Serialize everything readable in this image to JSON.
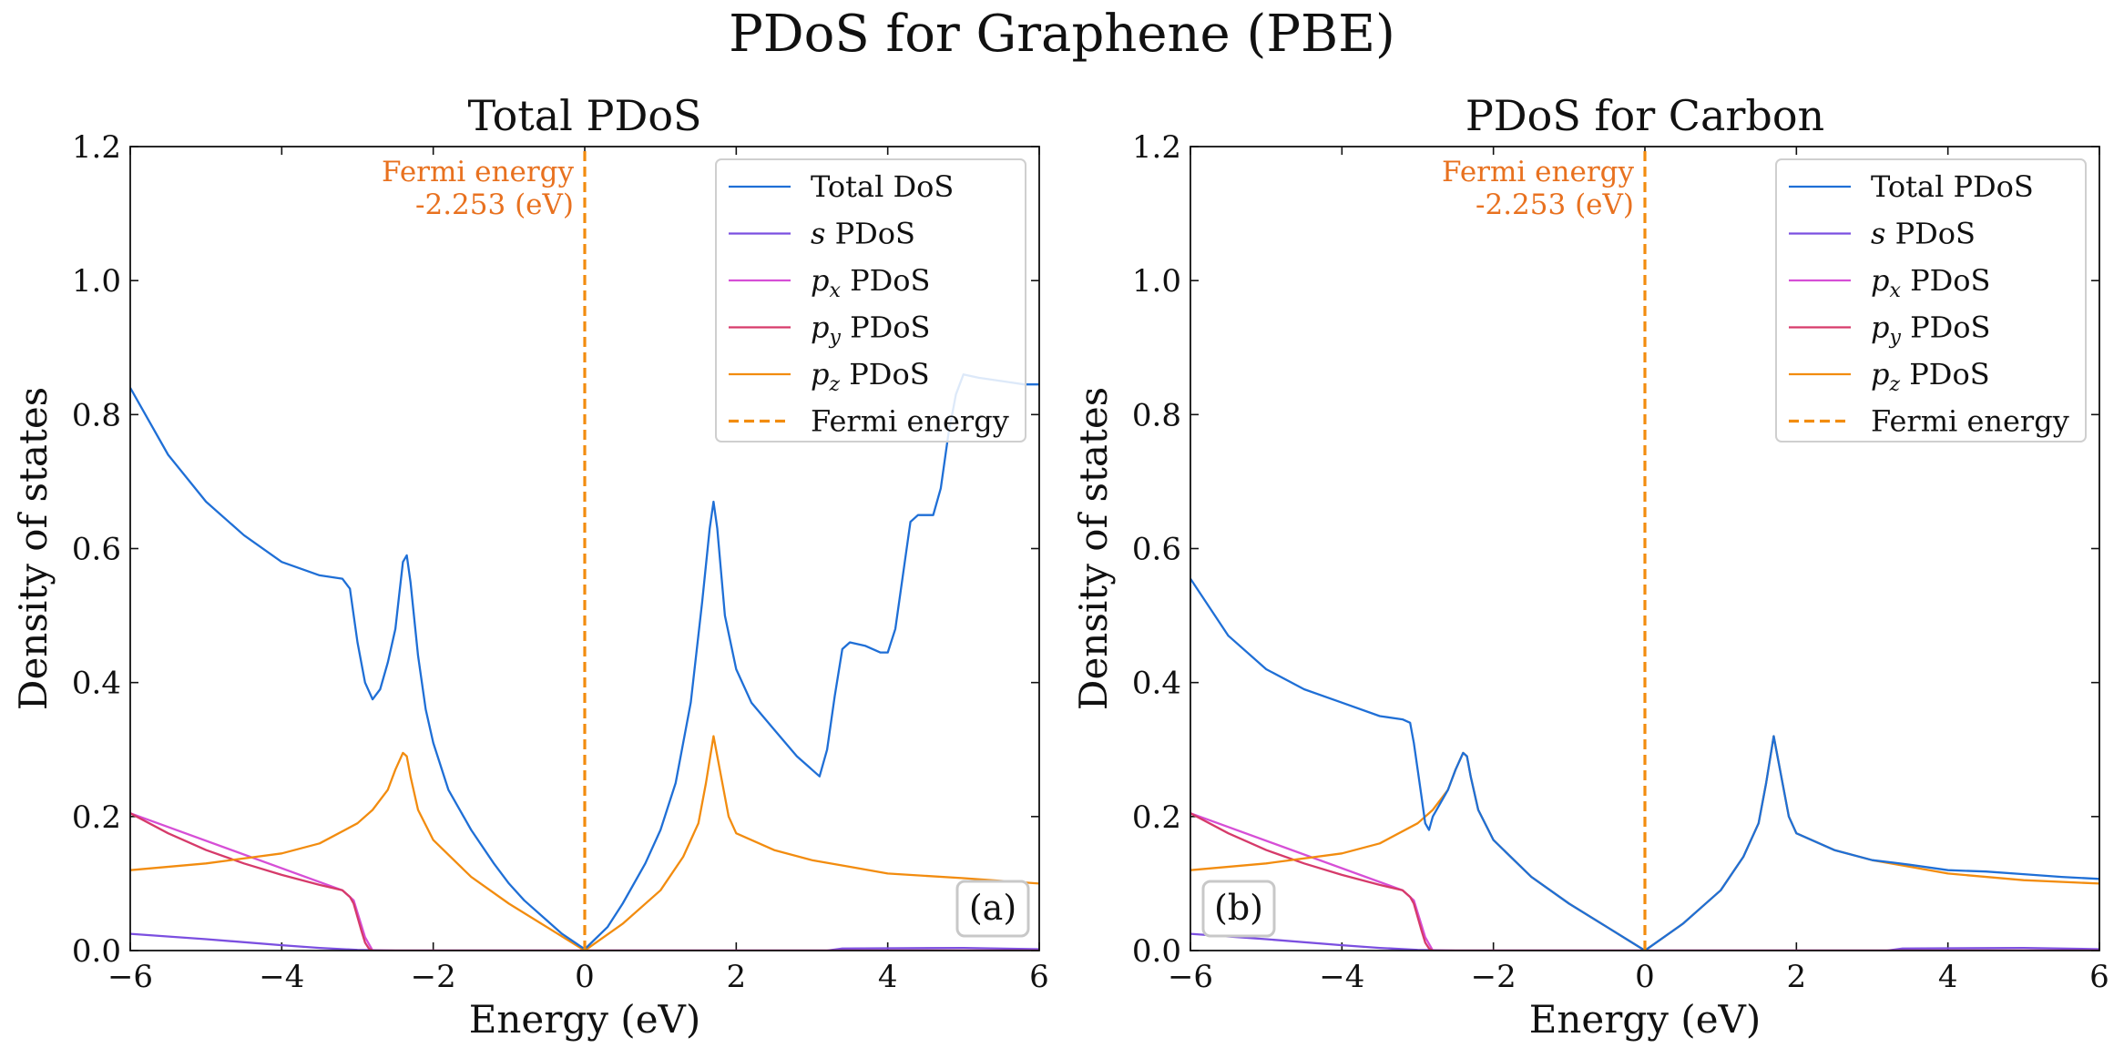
{
  "figure": {
    "suptitle": "PDoS for Graphene (PBE)"
  },
  "colors": {
    "total": "#1f6fd6",
    "s": "#7b4fe0",
    "px": "#d64fd6",
    "py": "#d63a6a",
    "pz": "#f28c0f",
    "fermi": "#f28c0f",
    "fermi_text": "#e8711f"
  },
  "chart_data": [
    {
      "type": "line",
      "title": "Total PDoS",
      "xlabel": "Energy (eV)",
      "ylabel": "Density of states",
      "xlim": [
        -6,
        6
      ],
      "ylim": [
        0,
        1.2
      ],
      "xticks": [
        -6,
        -4,
        -2,
        0,
        2,
        4,
        6
      ],
      "xtick_labels": [
        "−6",
        "−4",
        "−2",
        "0",
        "2",
        "4",
        "6"
      ],
      "yticks": [
        0,
        0.2,
        0.4,
        0.6,
        0.8,
        1.0,
        1.2
      ],
      "ytick_labels": [
        "0.0",
        "0.2",
        "0.4",
        "0.6",
        "0.8",
        "1.0",
        "1.2"
      ],
      "grid": false,
      "legend_position": "top-right",
      "panel_label": "(a)",
      "fermi_energy": 0,
      "fermi_annotation": [
        "Fermi energy",
        "-2.253 (eV)"
      ],
      "series": [
        {
          "name": "Total DoS",
          "color_key": "total",
          "style": "solid",
          "x": [
            -6,
            -5.5,
            -5,
            -4.5,
            -4,
            -3.5,
            -3.2,
            -3.1,
            -3.0,
            -2.9,
            -2.8,
            -2.7,
            -2.6,
            -2.5,
            -2.45,
            -2.4,
            -2.35,
            -2.3,
            -2.2,
            -2.1,
            -2.0,
            -1.8,
            -1.5,
            -1.2,
            -1.0,
            -0.8,
            -0.5,
            -0.3,
            0,
            0.3,
            0.5,
            0.8,
            1.0,
            1.2,
            1.4,
            1.55,
            1.65,
            1.7,
            1.75,
            1.85,
            2.0,
            2.2,
            2.5,
            2.8,
            3.0,
            3.1,
            3.2,
            3.3,
            3.4,
            3.5,
            3.7,
            3.9,
            4.0,
            4.1,
            4.2,
            4.3,
            4.4,
            4.6,
            4.7,
            4.8,
            4.9,
            5.0,
            5.2,
            5.5,
            5.8,
            6.0
          ],
          "y": [
            0.84,
            0.74,
            0.67,
            0.62,
            0.58,
            0.56,
            0.555,
            0.54,
            0.46,
            0.4,
            0.375,
            0.39,
            0.43,
            0.48,
            0.53,
            0.58,
            0.59,
            0.55,
            0.44,
            0.36,
            0.31,
            0.24,
            0.18,
            0.13,
            0.1,
            0.075,
            0.045,
            0.025,
            0.002,
            0.035,
            0.07,
            0.13,
            0.18,
            0.25,
            0.37,
            0.52,
            0.63,
            0.67,
            0.63,
            0.5,
            0.42,
            0.37,
            0.33,
            0.29,
            0.27,
            0.26,
            0.3,
            0.38,
            0.45,
            0.46,
            0.455,
            0.445,
            0.445,
            0.48,
            0.56,
            0.64,
            0.65,
            0.65,
            0.69,
            0.77,
            0.83,
            0.86,
            0.855,
            0.85,
            0.845,
            0.845
          ]
        },
        {
          "name": "s PDoS",
          "color_key": "s",
          "style": "solid",
          "x": [
            -6,
            -5,
            -4,
            -3.5,
            -3,
            -2.5,
            -2,
            0,
            3.2,
            3.4,
            5,
            6
          ],
          "y": [
            0.025,
            0.017,
            0.008,
            0.004,
            0.001,
            0.0,
            0.0,
            0.0,
            0.0,
            0.003,
            0.004,
            0.002
          ]
        },
        {
          "name": "p_x PDoS",
          "color_key": "px",
          "style": "solid",
          "x": [
            -6,
            -3.2,
            -3.05,
            -2.9,
            -2.8,
            0,
            6
          ],
          "y": [
            0.205,
            0.09,
            0.075,
            0.02,
            0.0,
            0.0,
            0.0
          ]
        },
        {
          "name": "p_y PDoS",
          "color_key": "py",
          "style": "solid",
          "x": [
            -6,
            -5.5,
            -5,
            -4.5,
            -4,
            -3.5,
            -3.2,
            -3.1,
            -3.05,
            -3.0,
            -2.95,
            -2.9,
            -2.85,
            -2.8,
            -2.7,
            0,
            6
          ],
          "y": [
            0.205,
            0.175,
            0.15,
            0.13,
            0.113,
            0.098,
            0.09,
            0.08,
            0.07,
            0.05,
            0.03,
            0.012,
            0.003,
            0.0,
            0.0,
            0.0,
            0.0
          ]
        },
        {
          "name": "p_z PDoS",
          "color_key": "pz",
          "style": "solid",
          "x": [
            -6,
            -5,
            -4,
            -3.5,
            -3,
            -2.8,
            -2.6,
            -2.5,
            -2.4,
            -2.35,
            -2.3,
            -2.2,
            -2.0,
            -1.5,
            -1.0,
            -0.5,
            0,
            0.5,
            1.0,
            1.3,
            1.5,
            1.6,
            1.7,
            1.8,
            1.9,
            2.0,
            2.5,
            3.0,
            3.5,
            4.0,
            5.0,
            6.0
          ],
          "y": [
            0.12,
            0.13,
            0.145,
            0.16,
            0.19,
            0.21,
            0.24,
            0.27,
            0.295,
            0.29,
            0.26,
            0.21,
            0.165,
            0.11,
            0.07,
            0.035,
            0.0,
            0.04,
            0.09,
            0.14,
            0.19,
            0.25,
            0.32,
            0.26,
            0.2,
            0.175,
            0.15,
            0.135,
            0.125,
            0.115,
            0.108,
            0.1
          ]
        },
        {
          "name": "Fermi energy",
          "color_key": "fermi",
          "style": "dashed",
          "x": [
            0,
            0
          ],
          "y": [
            0,
            1.2
          ]
        }
      ]
    },
    {
      "type": "line",
      "title": "PDoS for Carbon",
      "xlabel": "Energy (eV)",
      "ylabel": "Density of states",
      "xlim": [
        -6,
        6
      ],
      "ylim": [
        0,
        1.2
      ],
      "xticks": [
        -6,
        -4,
        -2,
        0,
        2,
        4,
        6
      ],
      "xtick_labels": [
        "−6",
        "−4",
        "−2",
        "0",
        "2",
        "4",
        "6"
      ],
      "yticks": [
        0,
        0.2,
        0.4,
        0.6,
        0.8,
        1.0,
        1.2
      ],
      "ytick_labels": [
        "0.0",
        "0.2",
        "0.4",
        "0.6",
        "0.8",
        "1.0",
        "1.2"
      ],
      "grid": false,
      "legend_position": "top-right",
      "panel_label": "(b)",
      "fermi_energy": 0,
      "fermi_annotation": [
        "Fermi energy",
        "-2.253 (eV)"
      ],
      "series": [
        {
          "name": "Total PDoS",
          "color_key": "total",
          "style": "solid",
          "x": [
            -6,
            -5.5,
            -5,
            -4.5,
            -4,
            -3.5,
            -3.2,
            -3.1,
            -3.05,
            -3.0,
            -2.95,
            -2.9,
            -2.85,
            -2.8,
            -2.6,
            -2.5,
            -2.4,
            -2.35,
            -2.3,
            -2.2,
            -2.0,
            -1.5,
            -1.0,
            -0.5,
            0,
            0.5,
            1.0,
            1.3,
            1.5,
            1.6,
            1.7,
            1.8,
            1.9,
            2.0,
            2.5,
            3.0,
            3.3,
            3.5,
            4.0,
            4.5,
            5.0,
            5.5,
            6.0
          ],
          "y": [
            0.555,
            0.47,
            0.42,
            0.39,
            0.37,
            0.35,
            0.345,
            0.34,
            0.31,
            0.27,
            0.23,
            0.19,
            0.18,
            0.2,
            0.24,
            0.27,
            0.295,
            0.29,
            0.26,
            0.21,
            0.165,
            0.11,
            0.07,
            0.035,
            0.0,
            0.04,
            0.09,
            0.14,
            0.19,
            0.25,
            0.32,
            0.26,
            0.2,
            0.175,
            0.15,
            0.135,
            0.131,
            0.128,
            0.12,
            0.118,
            0.114,
            0.11,
            0.107
          ]
        },
        {
          "name": "s PDoS",
          "color_key": "s",
          "style": "solid",
          "x": [
            -6,
            -5,
            -4,
            -3.5,
            -3,
            -2.5,
            -2,
            0,
            3.2,
            3.4,
            5,
            6
          ],
          "y": [
            0.025,
            0.017,
            0.008,
            0.004,
            0.001,
            0.0,
            0.0,
            0.0,
            0.0,
            0.003,
            0.004,
            0.002
          ]
        },
        {
          "name": "p_x PDoS",
          "color_key": "px",
          "style": "solid",
          "x": [
            -6,
            -3.2,
            -3.05,
            -2.9,
            -2.8,
            0,
            6
          ],
          "y": [
            0.205,
            0.09,
            0.075,
            0.02,
            0.0,
            0.0,
            0.0
          ]
        },
        {
          "name": "p_y PDoS",
          "color_key": "py",
          "style": "solid",
          "x": [
            -6,
            -5.5,
            -5,
            -4.5,
            -4,
            -3.5,
            -3.2,
            -3.1,
            -3.05,
            -3.0,
            -2.95,
            -2.9,
            -2.85,
            -2.8,
            -2.7,
            0,
            6
          ],
          "y": [
            0.205,
            0.175,
            0.15,
            0.13,
            0.113,
            0.098,
            0.09,
            0.08,
            0.07,
            0.05,
            0.03,
            0.012,
            0.003,
            0.0,
            0.0,
            0.0,
            0.0
          ]
        },
        {
          "name": "p_z PDoS",
          "color_key": "pz",
          "style": "solid",
          "x": [
            -6,
            -5,
            -4,
            -3.5,
            -3,
            -2.8,
            -2.6,
            -2.5,
            -2.4,
            -2.35,
            -2.3,
            -2.2,
            -2.0,
            -1.5,
            -1.0,
            -0.5,
            0,
            0.5,
            1.0,
            1.3,
            1.5,
            1.6,
            1.7,
            1.8,
            1.9,
            2.0,
            2.5,
            3.0,
            3.5,
            4.0,
            5.0,
            6.0
          ],
          "y": [
            0.12,
            0.13,
            0.145,
            0.16,
            0.19,
            0.21,
            0.24,
            0.27,
            0.295,
            0.29,
            0.26,
            0.21,
            0.165,
            0.11,
            0.07,
            0.035,
            0.0,
            0.04,
            0.09,
            0.14,
            0.19,
            0.25,
            0.32,
            0.26,
            0.2,
            0.175,
            0.15,
            0.135,
            0.125,
            0.115,
            0.105,
            0.1
          ]
        },
        {
          "name": "Fermi energy",
          "color_key": "fermi",
          "style": "dashed",
          "x": [
            0,
            0
          ],
          "y": [
            0,
            1.2
          ]
        }
      ]
    }
  ]
}
